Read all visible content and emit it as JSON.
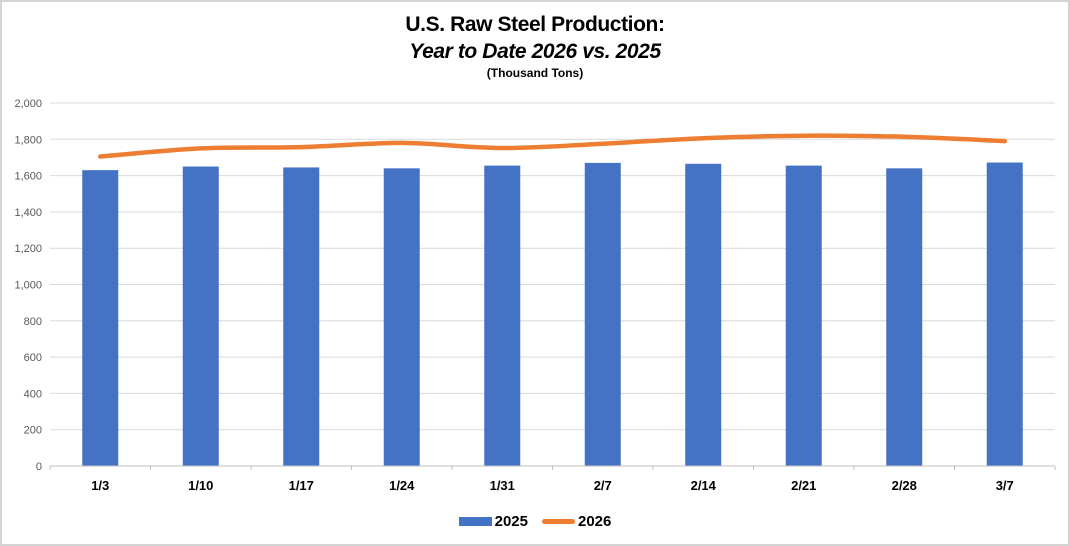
{
  "title": {
    "line1": "U.S. Raw Steel Production:",
    "line2": "Year to Date 2026 vs. 2025",
    "units": "(Thousand Tons)"
  },
  "legend": {
    "items": [
      {
        "label": "2025",
        "marker": "bar-swatch",
        "color": "#4472C4"
      },
      {
        "label": "2026",
        "marker": "line-swatch",
        "color": "#ED7D31"
      }
    ]
  },
  "colors": {
    "background": "#FFFFFF",
    "frame_border": "#D4D4D4",
    "gridline": "#D9D9D9",
    "axis_line": "#BFBFBF",
    "y_tick_text": "#595959",
    "x_tick_text": "#000000",
    "bar_2025": "#4472C4",
    "line_2026": "#ED7D31"
  },
  "chart_data": {
    "type": "bar",
    "combo": "bar+line",
    "title": "U.S. Raw Steel Production: Year to Date 2026 vs. 2025",
    "subtitle": "(Thousand Tons)",
    "categories": [
      "1/3",
      "1/10",
      "1/17",
      "1/24",
      "1/31",
      "2/7",
      "2/14",
      "2/21",
      "2/28",
      "3/7"
    ],
    "series": [
      {
        "name": "2025",
        "type": "bar",
        "color": "#4472C4",
        "values": [
          1630,
          1650,
          1645,
          1640,
          1655,
          1670,
          1665,
          1655,
          1640,
          1672
        ]
      },
      {
        "name": "2026",
        "type": "line",
        "color": "#ED7D31",
        "values": [
          1705,
          1750,
          1757,
          1780,
          1752,
          1776,
          1806,
          1820,
          1814,
          1790
        ]
      }
    ],
    "xlabel": "",
    "ylabel": "",
    "ylim": [
      0,
      2000
    ],
    "ytick_step": 200,
    "ytick_labels": [
      "0",
      "200",
      "400",
      "600",
      "800",
      "1,000",
      "1,200",
      "1,400",
      "1,600",
      "1,800",
      "2,000"
    ],
    "grid": "horizontal",
    "legend_position": "bottom"
  }
}
